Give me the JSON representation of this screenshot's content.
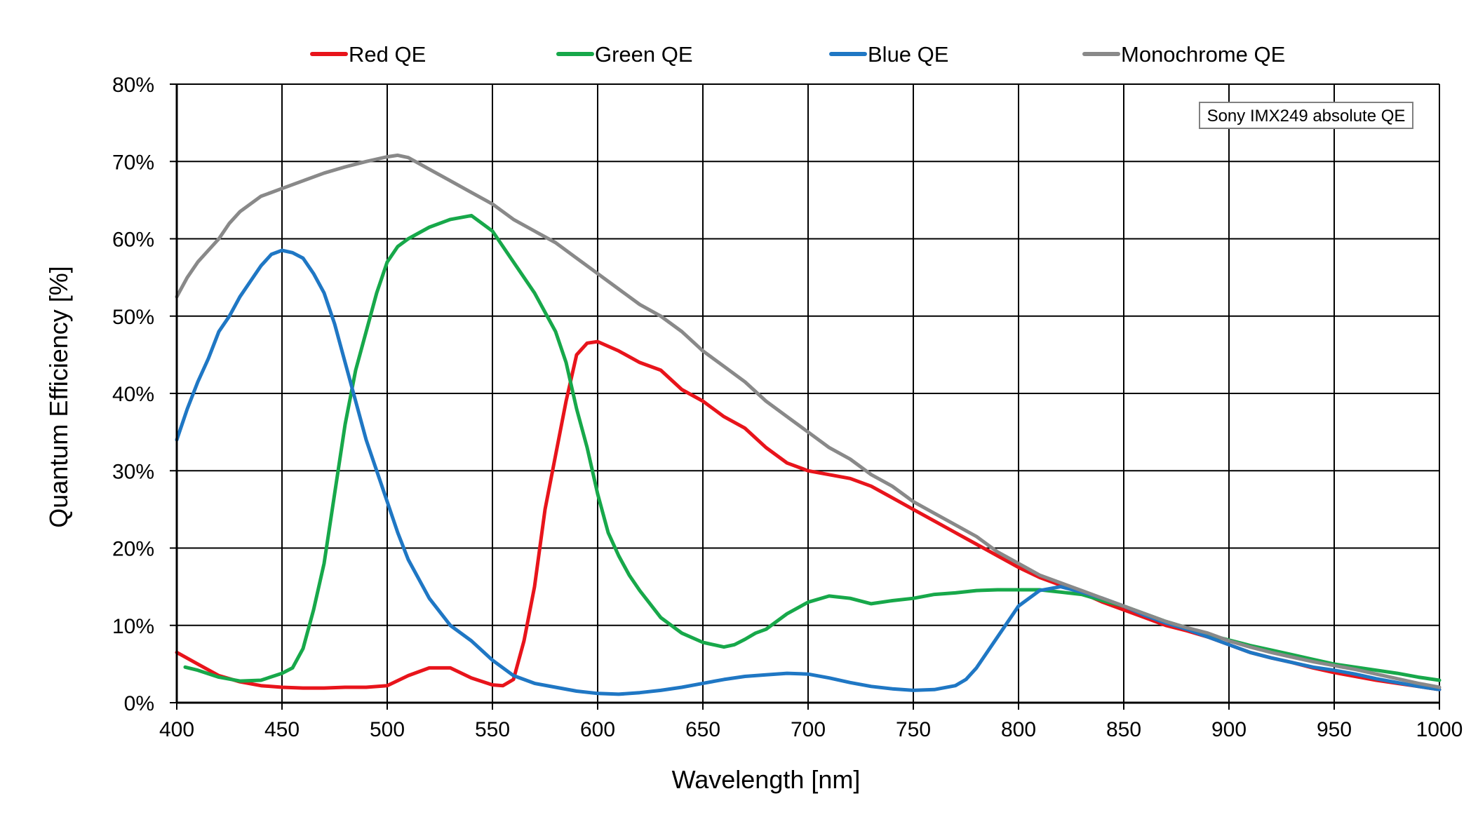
{
  "chart_data": {
    "type": "line",
    "title": "",
    "xlabel": "Wavelength [nm]",
    "ylabel": "Quantum Efficiency [%]",
    "xlim": [
      400,
      1000
    ],
    "ylim": [
      0,
      80
    ],
    "xticks": [
      400,
      450,
      500,
      550,
      600,
      650,
      700,
      750,
      800,
      850,
      900,
      950,
      1000
    ],
    "yticks": [
      0,
      10,
      20,
      30,
      40,
      50,
      60,
      70,
      80
    ],
    "ytick_suffix": "%",
    "grid": true,
    "legend_position": "top",
    "annotation": "Sony IMX249 absolute QE",
    "series": [
      {
        "name": "Red QE",
        "color": "#e8141b",
        "x": [
          400,
          410,
          420,
          430,
          440,
          450,
          460,
          470,
          480,
          490,
          500,
          510,
          520,
          530,
          540,
          550,
          555,
          560,
          565,
          570,
          575,
          580,
          585,
          590,
          595,
          600,
          610,
          620,
          630,
          640,
          650,
          660,
          670,
          680,
          690,
          700,
          710,
          720,
          730,
          740,
          750,
          760,
          770,
          780,
          790,
          800,
          810,
          820,
          830,
          840,
          850,
          860,
          870,
          880,
          890,
          900,
          910,
          920,
          930,
          940,
          950,
          960,
          970,
          980,
          990,
          1000
        ],
        "y": [
          6.5,
          5,
          3.5,
          2.7,
          2.2,
          2,
          1.9,
          1.9,
          2,
          2,
          2.2,
          3.5,
          4.5,
          4.5,
          3.2,
          2.3,
          2.2,
          3,
          8,
          15,
          25,
          32,
          39,
          45,
          46.5,
          46.7,
          45.5,
          44,
          43,
          40.5,
          39,
          37,
          35.5,
          33,
          31,
          30,
          29.5,
          29,
          28,
          26.5,
          25,
          23.5,
          22,
          20.5,
          19,
          17.5,
          16.2,
          15.2,
          14.2,
          13,
          12,
          11,
          10,
          9.3,
          8.5,
          7.5,
          6.5,
          5.8,
          5.2,
          4.5,
          3.9,
          3.4,
          2.9,
          2.5,
          2.1,
          1.7
        ]
      },
      {
        "name": "Green QE",
        "color": "#17a84a",
        "x": [
          404,
          410,
          420,
          430,
          440,
          450,
          455,
          460,
          465,
          470,
          475,
          480,
          485,
          490,
          495,
          500,
          505,
          510,
          520,
          530,
          540,
          550,
          560,
          570,
          580,
          585,
          590,
          595,
          600,
          605,
          610,
          615,
          620,
          630,
          640,
          650,
          660,
          665,
          670,
          675,
          680,
          690,
          700,
          710,
          720,
          730,
          740,
          750,
          760,
          770,
          780,
          790,
          800,
          810,
          820,
          830,
          840,
          850,
          860,
          870,
          880,
          890,
          900,
          910,
          920,
          930,
          940,
          950,
          960,
          970,
          980,
          990,
          1000
        ],
        "y": [
          4.6,
          4.2,
          3.3,
          2.8,
          2.9,
          3.8,
          4.5,
          7,
          12,
          18,
          27,
          36,
          43,
          48,
          53,
          57,
          59,
          60,
          61.5,
          62.5,
          63,
          61,
          57,
          53,
          48,
          44,
          38,
          33,
          27,
          22,
          19,
          16.5,
          14.5,
          11,
          9,
          7.8,
          7.2,
          7.5,
          8.2,
          9,
          9.5,
          11.5,
          13,
          13.8,
          13.5,
          12.8,
          13.2,
          13.5,
          14,
          14.2,
          14.5,
          14.6,
          14.6,
          14.6,
          14.3,
          14,
          13.2,
          12.5,
          11.5,
          10.5,
          9.7,
          8.8,
          8.1,
          7.4,
          6.8,
          6.2,
          5.6,
          5.0,
          4.6,
          4.2,
          3.8,
          3.3,
          2.9
        ]
      },
      {
        "name": "Blue QE",
        "color": "#1f77c4",
        "x": [
          400,
          405,
          410,
          415,
          420,
          425,
          430,
          435,
          440,
          445,
          450,
          455,
          460,
          465,
          470,
          475,
          480,
          485,
          490,
          495,
          500,
          505,
          510,
          515,
          520,
          530,
          540,
          550,
          560,
          570,
          580,
          590,
          600,
          610,
          620,
          630,
          640,
          650,
          660,
          670,
          680,
          690,
          700,
          710,
          720,
          730,
          740,
          750,
          760,
          770,
          775,
          780,
          790,
          800,
          810,
          820,
          830,
          840,
          850,
          860,
          870,
          880,
          890,
          900,
          910,
          920,
          930,
          940,
          950,
          960,
          970,
          980,
          990,
          1000
        ],
        "y": [
          34,
          38,
          41.5,
          44.5,
          48,
          50,
          52.5,
          54.5,
          56.5,
          58,
          58.5,
          58.2,
          57.5,
          55.5,
          53,
          49,
          44,
          39,
          34,
          30,
          26,
          22,
          18.5,
          16,
          13.5,
          10,
          8,
          5.5,
          3.5,
          2.5,
          2,
          1.5,
          1.2,
          1.1,
          1.3,
          1.6,
          2.0,
          2.5,
          3.0,
          3.4,
          3.6,
          3.8,
          3.7,
          3.2,
          2.6,
          2.1,
          1.8,
          1.6,
          1.7,
          2.2,
          3.0,
          4.5,
          8.5,
          12.5,
          14.5,
          15,
          14.3,
          13.5,
          12.5,
          11.3,
          10.3,
          9.5,
          8.5,
          7.5,
          6.5,
          5.8,
          5.2,
          4.6,
          4.2,
          3.7,
          3.1,
          2.6,
          2.1,
          1.7
        ]
      },
      {
        "name": "Monochrome QE",
        "color": "#898989",
        "x": [
          400,
          405,
          410,
          415,
          420,
          425,
          430,
          435,
          440,
          445,
          450,
          460,
          470,
          480,
          490,
          500,
          505,
          510,
          520,
          530,
          540,
          550,
          560,
          570,
          580,
          590,
          600,
          610,
          620,
          630,
          640,
          650,
          660,
          670,
          680,
          690,
          700,
          710,
          720,
          730,
          740,
          750,
          760,
          770,
          780,
          790,
          800,
          810,
          820,
          830,
          840,
          850,
          860,
          870,
          880,
          890,
          900,
          910,
          920,
          930,
          940,
          950,
          960,
          970,
          980,
          990,
          1000
        ],
        "y": [
          52.5,
          55,
          57,
          58.5,
          60,
          62,
          63.5,
          64.5,
          65.5,
          66,
          66.5,
          67.5,
          68.5,
          69.3,
          70,
          70.6,
          70.8,
          70.5,
          69,
          67.5,
          66,
          64.5,
          62.5,
          61,
          59.5,
          57.5,
          55.5,
          53.5,
          51.5,
          50,
          48,
          45.5,
          43.5,
          41.5,
          39,
          37,
          35,
          33,
          31.5,
          29.5,
          28,
          26,
          24.5,
          23,
          21.5,
          19.5,
          18,
          16.5,
          15.5,
          14.5,
          13.5,
          12.5,
          11.5,
          10.5,
          9.7,
          9,
          8,
          7.2,
          6.5,
          5.9,
          5.3,
          4.8,
          4.3,
          3.7,
          3.1,
          2.5,
          2.0
        ]
      }
    ]
  }
}
